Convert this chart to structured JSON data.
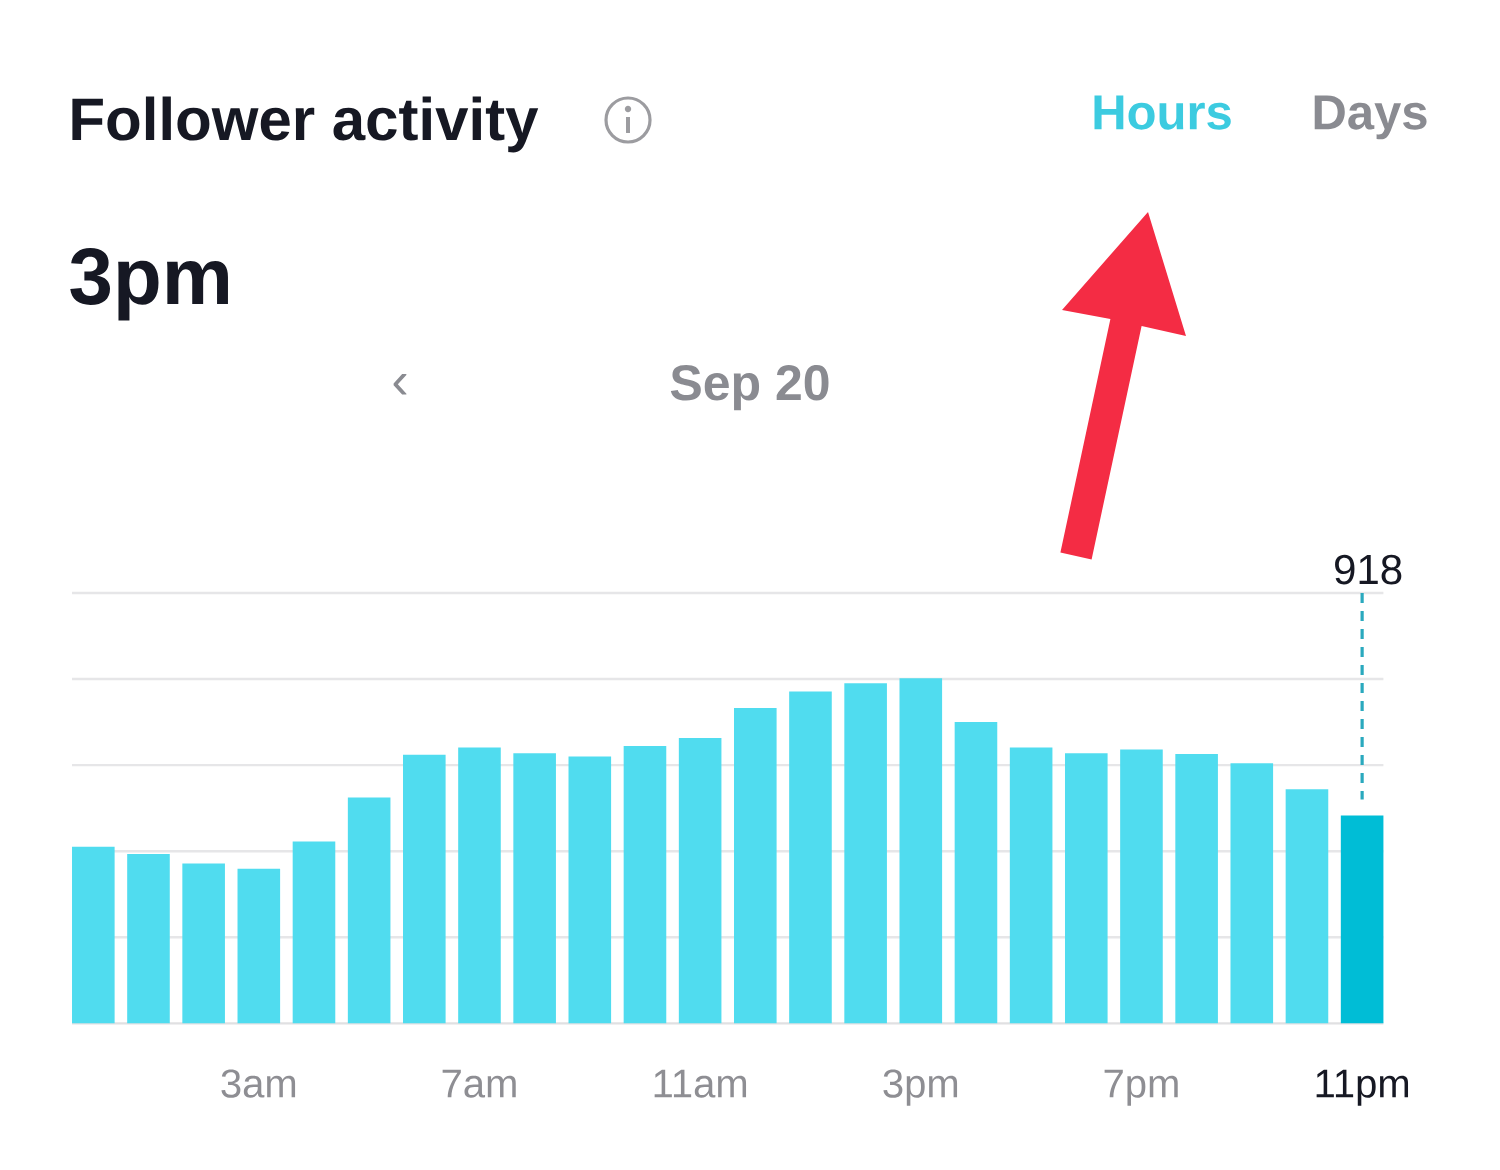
{
  "chart_data": {
    "type": "bar",
    "title": "Follower activity",
    "annotations": [
      "Hours",
      "Days",
      "3pm",
      "‹",
      "Sep 20"
    ],
    "categories": [
      null,
      null,
      null,
      "3am",
      null,
      null,
      null,
      "7am",
      null,
      null,
      null,
      "11am",
      null,
      null,
      null,
      "3pm",
      null,
      null,
      null,
      "7pm",
      null,
      null,
      null,
      "11pm"
    ],
    "values": [
      780,
      748,
      706,
      683,
      803,
      997,
      1186,
      1218,
      1192,
      1178,
      1224,
      1260,
      1392,
      1465,
      1501,
      1524,
      1330,
      1218,
      1192,
      1209,
      1189,
      1148,
      1033,
      918
    ],
    "colors": [
      "#50dcef",
      "#50dcef",
      "#50dcef",
      "#50dcef",
      "#50dcef",
      "#50dcef",
      "#50dcef",
      "#50dcef",
      "#50dcef",
      "#50dcef",
      "#50dcef",
      "#50dcef",
      "#50dcef",
      "#50dcef",
      "#50dcef",
      "#50dcef",
      "#50dcef",
      "#50dcef",
      "#50dcef",
      "#50dcef",
      "#50dcef",
      "#50dcef",
      "#50dcef",
      "#00bdd6"
    ],
    "value_labels": [
      null,
      null,
      null,
      null,
      null,
      null,
      null,
      null,
      null,
      null,
      null,
      null,
      null,
      null,
      null,
      null,
      null,
      null,
      null,
      null,
      null,
      null,
      null,
      "918"
    ],
    "ylim": [
      0,
      1900
    ],
    "yticks": [
      {
        "value": 380,
        "label": null
      },
      {
        "value": 760,
        "label": null
      },
      {
        "value": 1140,
        "label": null
      },
      {
        "value": 1520,
        "label": null
      },
      {
        "value": 1900,
        "label": null
      }
    ],
    "grid": "y"
  }
}
